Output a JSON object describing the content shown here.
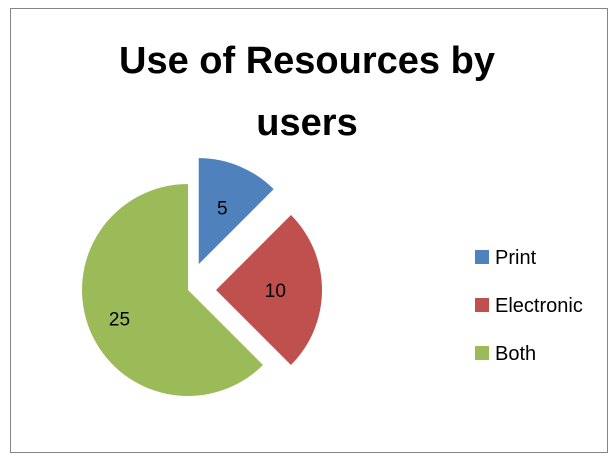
{
  "chart_data": {
    "type": "pie",
    "title_lines": [
      "Use of Resources by",
      "users"
    ],
    "categories": [
      "Print",
      "Electronic",
      "Both"
    ],
    "values": [
      5,
      10,
      25
    ],
    "colors": [
      "#4F81BD",
      "#C0504D",
      "#9BBB59"
    ],
    "exploded": true,
    "legend": "right",
    "data_labels": true
  }
}
